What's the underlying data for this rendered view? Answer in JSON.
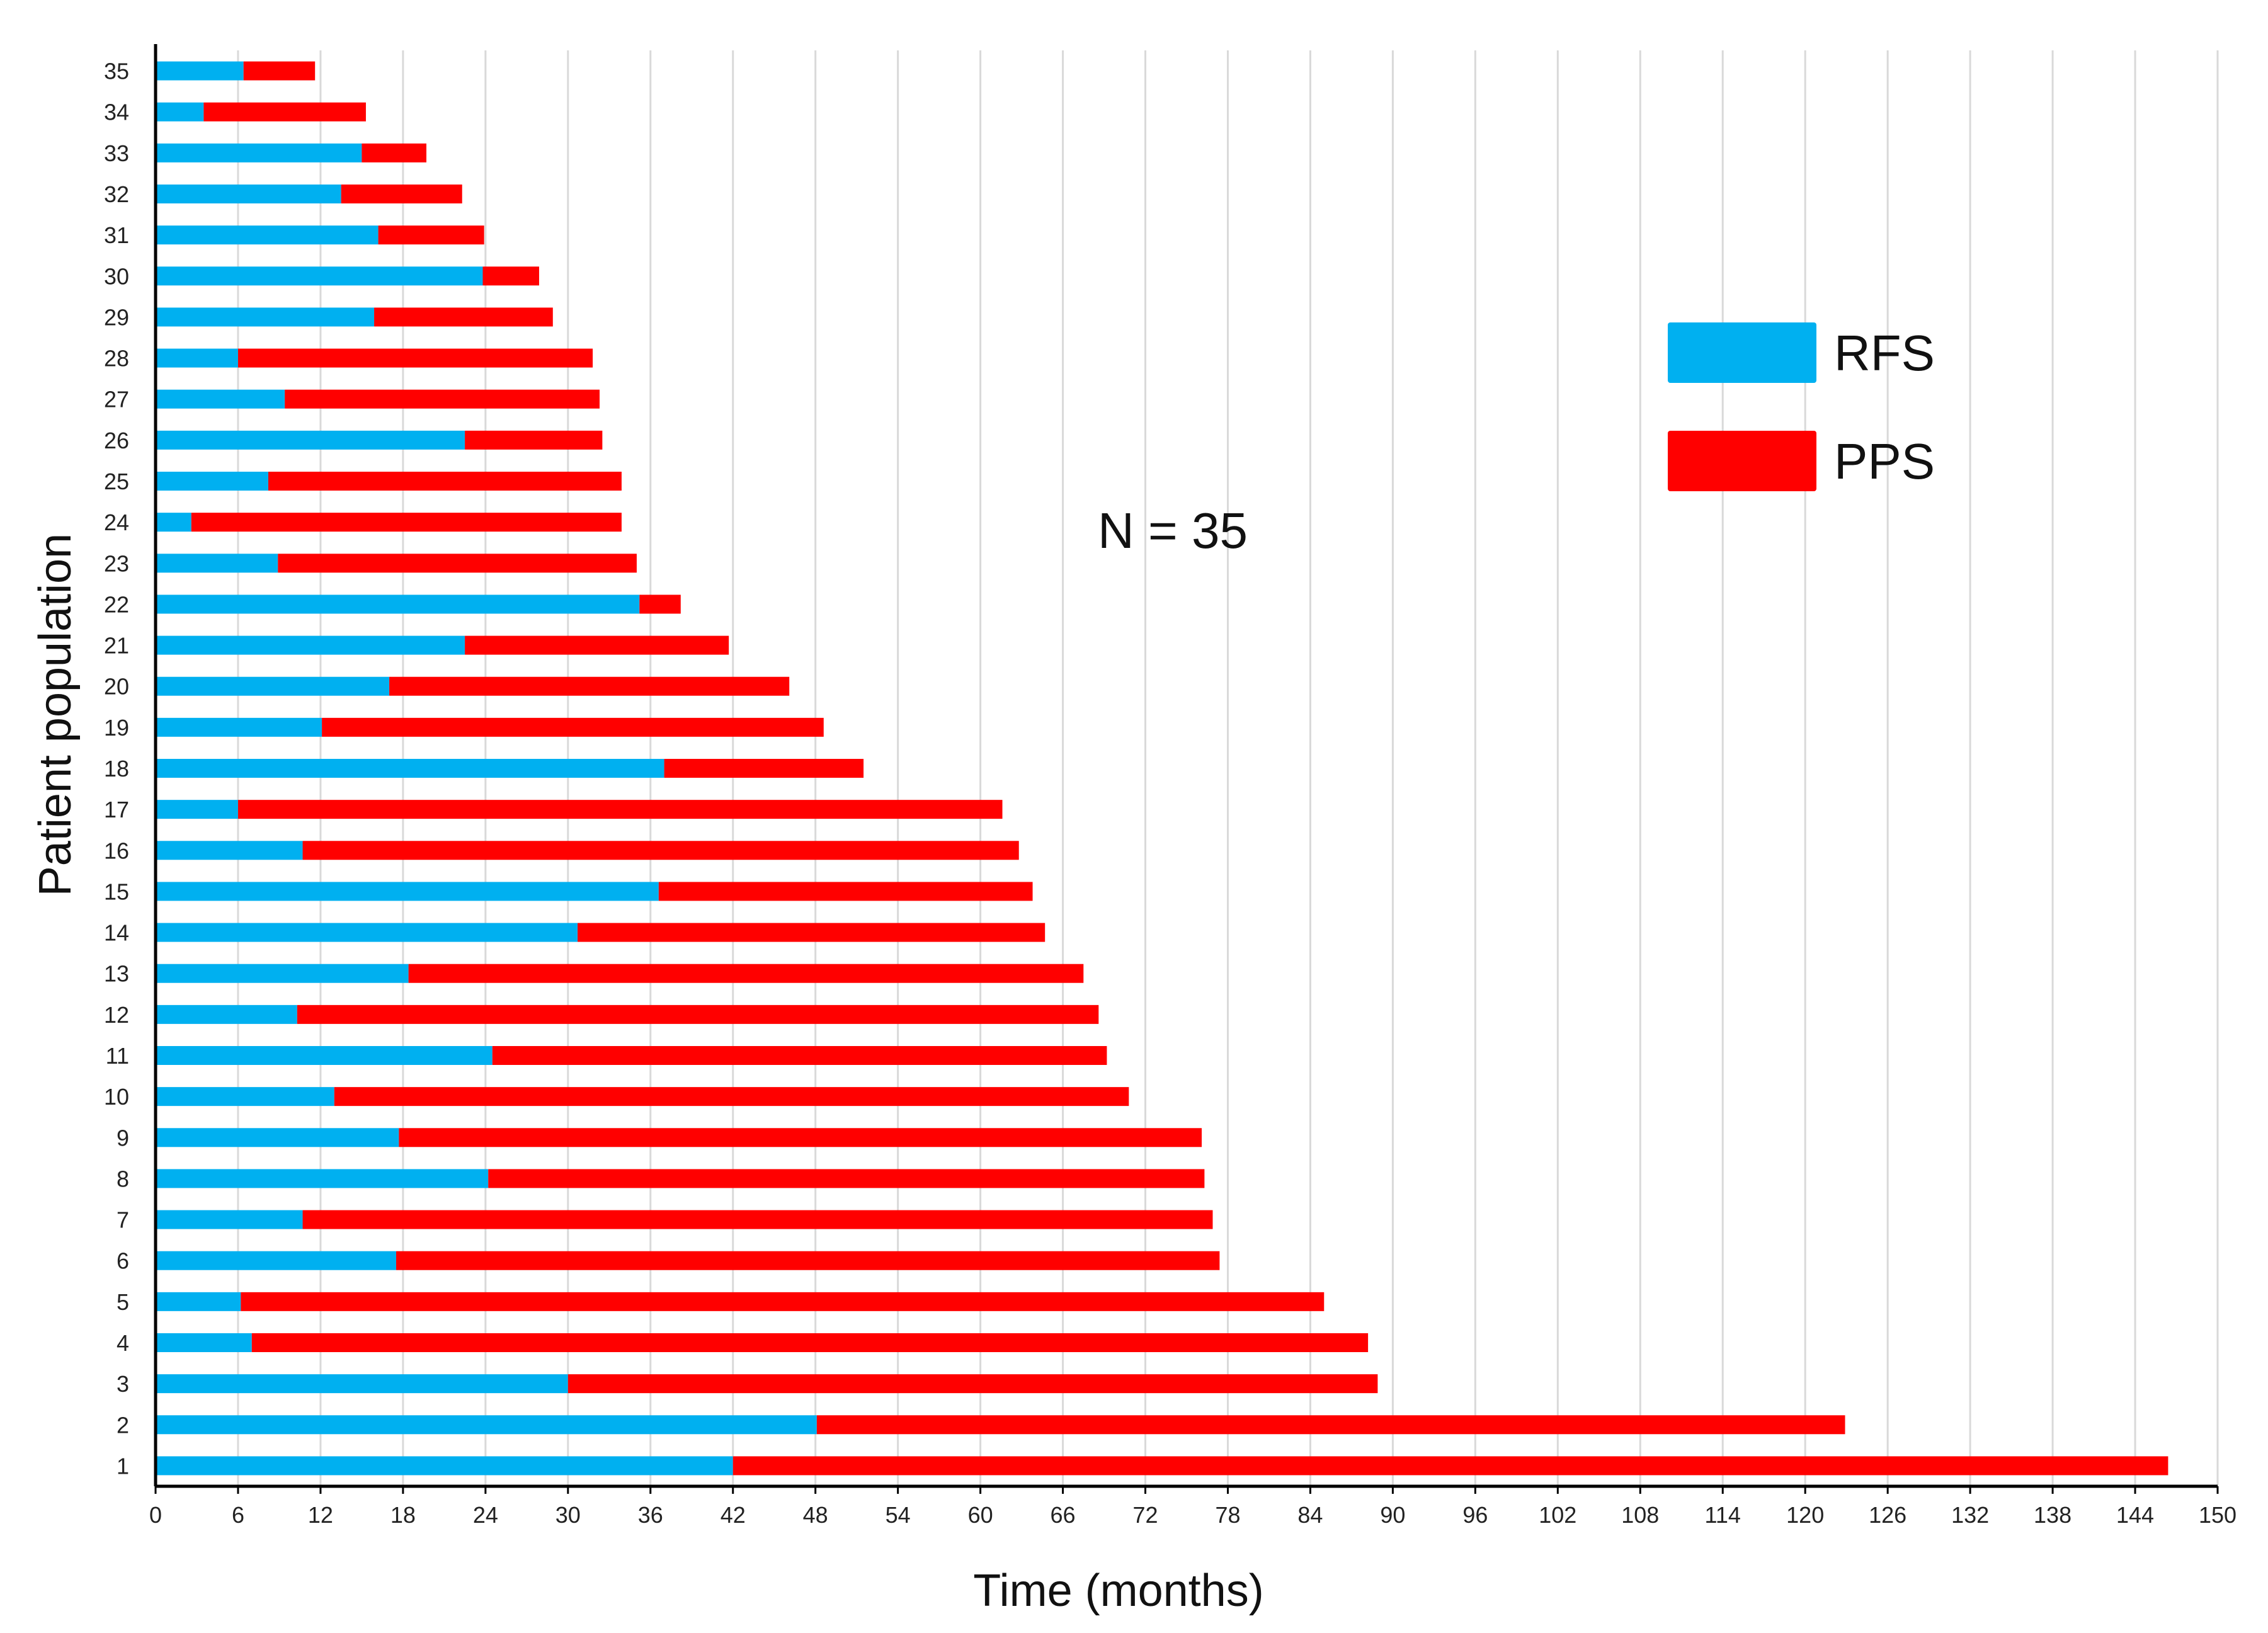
{
  "chart_data": {
    "type": "bar",
    "orientation": "horizontal",
    "stacked": true,
    "title": "",
    "xlabel": "Time  (months)",
    "ylabel": "Patient population",
    "xlim": [
      0,
      150
    ],
    "x_ticks": [
      0,
      6,
      12,
      18,
      24,
      30,
      36,
      42,
      48,
      54,
      60,
      66,
      72,
      78,
      84,
      90,
      96,
      102,
      108,
      114,
      120,
      126,
      132,
      138,
      144,
      150
    ],
    "grid": "vertical",
    "legend_position": "top-right",
    "annotation": "N = 35",
    "categories": [
      "1",
      "2",
      "3",
      "4",
      "5",
      "6",
      "7",
      "8",
      "9",
      "10",
      "11",
      "12",
      "13",
      "14",
      "15",
      "16",
      "17",
      "18",
      "19",
      "20",
      "21",
      "22",
      "23",
      "24",
      "25",
      "26",
      "27",
      "28",
      "29",
      "30",
      "31",
      "32",
      "33",
      "34",
      "35"
    ],
    "series": [
      {
        "name": "RFS",
        "color": "#00b0f0",
        "values": [
          42,
          48.1,
          30,
          7,
          6.2,
          17.5,
          10.7,
          24.2,
          17.7,
          13,
          24.5,
          10.3,
          18.4,
          30.7,
          36.6,
          10.7,
          6,
          37,
          12.1,
          17,
          22.5,
          35.2,
          8.9,
          2.6,
          8.2,
          22.5,
          9.4,
          6,
          15.9,
          23.8,
          16.2,
          13.5,
          15,
          3.5,
          6.4
        ]
      },
      {
        "name": "PPS",
        "color": "#ff0000",
        "values": [
          104.4,
          74.8,
          58.9,
          81.2,
          78.8,
          59.9,
          66.2,
          52.1,
          58.4,
          57.8,
          44.7,
          58.3,
          49.1,
          34,
          27.2,
          52.1,
          55.6,
          14.5,
          36.5,
          29.1,
          19.2,
          3,
          26.1,
          31.3,
          25.7,
          10,
          22.9,
          25.8,
          13,
          4.1,
          7.7,
          8.8,
          4.7,
          11.8,
          5.2
        ]
      }
    ]
  }
}
